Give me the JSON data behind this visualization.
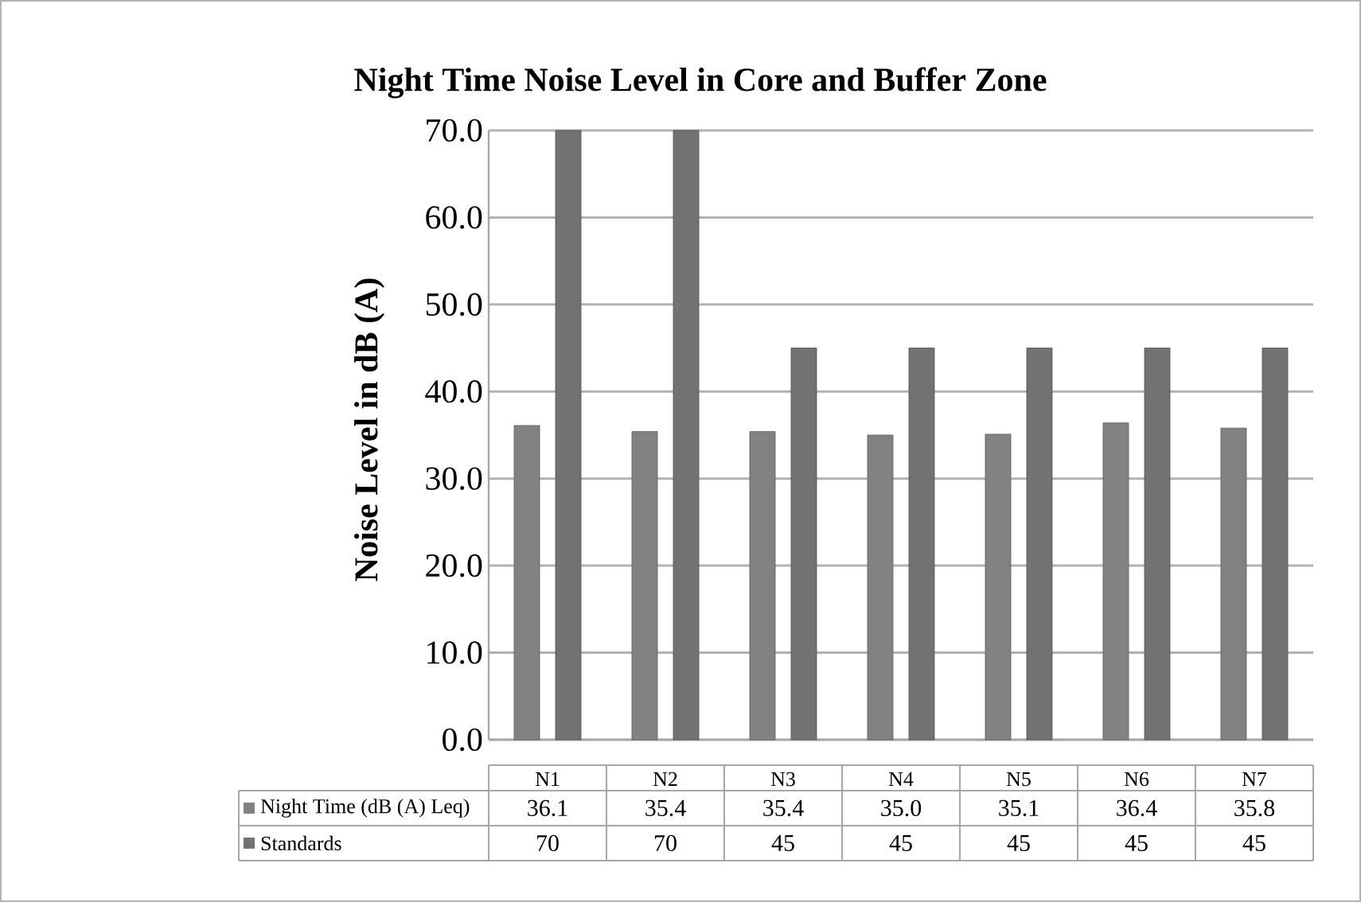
{
  "chart_data": {
    "type": "bar",
    "title": "Night Time Noise Level in Core and Buffer Zone",
    "ylabel": "Noise Level in dB (A)",
    "categories": [
      "N1",
      "N2",
      "N3",
      "N4",
      "N5",
      "N6",
      "N7"
    ],
    "series": [
      {
        "name": "Night Time (dB (A) Leq)",
        "color": "#828282",
        "values": [
          36.1,
          35.4,
          35.4,
          35.0,
          35.1,
          36.4,
          35.8
        ],
        "value_labels": [
          "36.1",
          "35.4",
          "35.4",
          "35.0",
          "35.1",
          "36.4",
          "35.8"
        ]
      },
      {
        "name": "Standards",
        "color": "#727272",
        "values": [
          70,
          70,
          45,
          45,
          45,
          45,
          45
        ],
        "value_labels": [
          "70",
          "70",
          "45",
          "45",
          "45",
          "45",
          "45"
        ]
      }
    ],
    "ylim": [
      0,
      70
    ],
    "yticks": [
      {
        "value": 0,
        "label": "0.0"
      },
      {
        "value": 10,
        "label": "10.0"
      },
      {
        "value": 20,
        "label": "20.0"
      },
      {
        "value": 30,
        "label": "30.0"
      },
      {
        "value": 40,
        "label": "40.0"
      },
      {
        "value": 50,
        "label": "50.0"
      },
      {
        "value": 60,
        "label": "60.0"
      },
      {
        "value": 70,
        "label": "70.0"
      }
    ],
    "grid": "y",
    "legend": "bottom"
  }
}
